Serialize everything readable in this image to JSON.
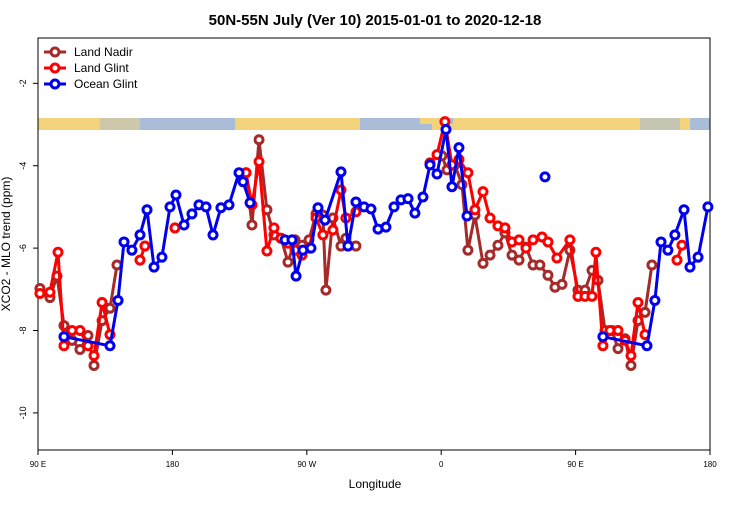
{
  "chart_data": {
    "type": "line",
    "title": "50N-55N July (Ver 10)   2015-01-01 to 2020-12-18",
    "x_label": "Longitude",
    "y_label": "XCO2 - MLO trend (ppm)",
    "xlim": [
      90,
      540
    ],
    "xticks": [
      {
        "value": 90,
        "label": "90 E"
      },
      {
        "value": 180,
        "label": "180"
      },
      {
        "value": 270,
        "label": "90 W"
      },
      {
        "value": 360,
        "label": "0"
      },
      {
        "value": 450,
        "label": "90 E"
      },
      {
        "value": 540,
        "label": "180"
      }
    ],
    "ylim": [
      -10.9,
      -0.9
    ],
    "yticks": [
      -2,
      -4,
      -6,
      -8,
      -10
    ],
    "legend": "top-left",
    "series": [
      {
        "name": "Land Nadir",
        "color": "#a52a2a",
        "x": [
          91.3,
          98.0,
          102.7,
          107.4,
          112.8,
          118.1,
          123.5,
          127.5,
          132.9,
          138.2,
          142.9,
          null,
          229.3,
          233.3,
          238.0,
          243.3,
          248.0,
          252.7,
          257.4,
          262.1,
          266.8,
          271.5,
          276.2,
          280.8,
          282.8,
          287.5,
          292.9,
          296.2,
          302.9,
          null,
          360.5,
          363.9,
          369.2,
          373.9,
          377.9,
          382.6,
          388.0,
          392.7,
          398.0,
          402.7,
          407.4,
          412.1,
          416.8,
          421.5,
          426.1,
          431.5,
          436.2,
          440.9,
          446.2,
          451.6,
          456.3,
          461.0,
          465.0,
          469.7,
          474.4,
          478.4,
          483.1,
          487.1,
          491.8,
          496.5,
          501.1
        ],
        "values": [
          -6.98,
          -7.2,
          -6.68,
          -7.88,
          -8.24,
          -8.46,
          -8.12,
          -8.85,
          -7.76,
          -7.46,
          -6.41,
          null,
          -4.17,
          -5.44,
          -3.37,
          -5.07,
          -5.68,
          -5.76,
          -6.34,
          -5.8,
          -5.93,
          -5.8,
          -5.17,
          -5.2,
          -7.02,
          -5.27,
          -5.95,
          -5.76,
          -5.95,
          null,
          -3.76,
          -4.1,
          -3.98,
          -4.46,
          -6.05,
          -5.2,
          -6.37,
          -6.17,
          -5.93,
          -5.63,
          -6.17,
          -6.29,
          -5.98,
          -6.41,
          -6.41,
          -6.66,
          -6.95,
          -6.88,
          -6.05,
          -7.02,
          -7.02,
          -6.54,
          -6.78,
          -8.0,
          -8.0,
          -8.44,
          -8.2,
          -8.85,
          -7.76,
          -7.56,
          -6.41
        ]
      },
      {
        "name": "Land Glint",
        "color": "#ff0000",
        "x": [
          91.3,
          98.0,
          103.4,
          107.4,
          112.8,
          118.1,
          123.5,
          127.5,
          132.9,
          138.2,
          null,
          158.3,
          161.6,
          null,
          181.7,
          null,
          229.3,
          233.3,
          238.0,
          243.3,
          248.0,
          252.7,
          257.4,
          262.1,
          266.8,
          271.5,
          276.2,
          280.8,
          287.5,
          292.9,
          296.2,
          302.9,
          null,
          352.5,
          357.2,
          362.5,
          367.2,
          371.9,
          377.9,
          382.6,
          388.0,
          392.7,
          398.0,
          402.7,
          407.4,
          412.1,
          416.8,
          421.5,
          427.5,
          431.5,
          437.5,
          446.2,
          451.6,
          456.3,
          461.0,
          463.6,
          468.3,
          473.0,
          478.4,
          483.1,
          487.1,
          491.8,
          496.5,
          null,
          517.9,
          521.2
        ],
        "values": [
          -7.1,
          -7.07,
          -6.1,
          -8.37,
          -8.0,
          -8.0,
          -8.37,
          -8.61,
          -7.32,
          -8.1,
          null,
          -6.29,
          -5.95,
          null,
          -5.51,
          null,
          -4.17,
          -4.95,
          -3.9,
          -6.07,
          -5.51,
          -5.76,
          -5.88,
          -6.05,
          -6.17,
          -6.0,
          -5.27,
          -5.68,
          -5.56,
          -4.59,
          -5.27,
          -5.12,
          null,
          -3.93,
          -3.73,
          -2.93,
          -3.98,
          -3.85,
          -4.17,
          -5.07,
          -4.63,
          -5.27,
          -5.46,
          -5.51,
          -5.85,
          -5.8,
          -6.0,
          -5.8,
          -5.73,
          -5.85,
          -6.24,
          -5.8,
          -7.17,
          -7.17,
          -7.17,
          -6.1,
          -8.37,
          -8.0,
          -8.0,
          -8.24,
          -8.61,
          -7.32,
          -8.1,
          null,
          -6.29,
          -5.93
        ]
      },
      {
        "name": "Ocean Glint",
        "color": "#0000ee",
        "x": [
          107.4,
          138.2,
          143.6,
          147.6,
          152.9,
          158.3,
          163.0,
          167.7,
          173.0,
          178.4,
          182.4,
          187.8,
          193.1,
          197.8,
          202.5,
          207.2,
          212.5,
          217.9,
          224.6,
          227.3,
          232.0,
          null,
          255.4,
          260.1,
          262.8,
          267.4,
          272.8,
          277.5,
          282.2,
          292.9,
          297.6,
          302.9,
          308.3,
          313.0,
          317.7,
          323.0,
          328.4,
          333.1,
          337.8,
          342.4,
          347.8,
          352.5,
          357.2,
          363.2,
          367.2,
          371.9,
          377.3,
          null,
          429.5,
          null,
          468.3,
          497.8,
          503.1,
          507.2,
          511.8,
          516.5,
          522.6,
          526.6,
          532.0,
          538.6
        ],
        "values": [
          -8.15,
          -8.37,
          -7.27,
          -5.85,
          -6.05,
          -5.68,
          -5.07,
          -6.46,
          -6.22,
          -5.0,
          -4.71,
          -5.44,
          -5.17,
          -4.95,
          -5.0,
          -5.68,
          -5.02,
          -4.95,
          -4.17,
          -4.39,
          -4.9,
          null,
          -5.8,
          -5.8,
          -6.68,
          -6.05,
          -6.0,
          -5.02,
          -5.32,
          -4.15,
          -5.95,
          -4.88,
          -5.0,
          -5.05,
          -5.54,
          -5.49,
          -5.0,
          -4.83,
          -4.8,
          -5.15,
          -4.76,
          -3.98,
          -4.2,
          -3.12,
          -4.51,
          -3.56,
          -5.22,
          null,
          -4.27,
          null,
          -8.15,
          -8.37,
          -7.27,
          -5.85,
          -6.05,
          -5.68,
          -5.07,
          -6.46,
          -6.22,
          -5.0
        ]
      }
    ]
  }
}
